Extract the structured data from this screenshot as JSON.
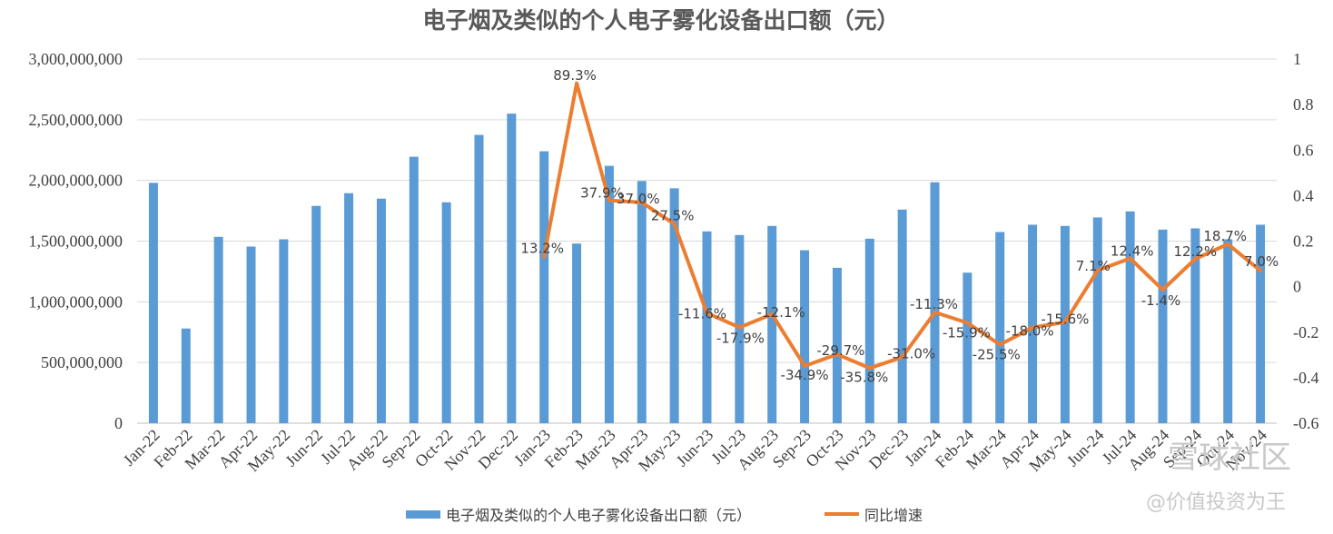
{
  "chart_data": {
    "type": "bar+line",
    "title": "电子烟及类似的个人电子雾化设备出口额（元）",
    "categories": [
      "Jan-22",
      "Feb-22",
      "Mar-22",
      "Apr-22",
      "May-22",
      "Jun-22",
      "Jul-22",
      "Aug-22",
      "Sep-22",
      "Oct-22",
      "Nov-22",
      "Dec-22",
      "Jan-23",
      "Feb-23",
      "Mar-23",
      "Apr-23",
      "May-23",
      "Jun-23",
      "Jul-23",
      "Aug-23",
      "Sep-23",
      "Oct-23",
      "Nov-23",
      "Dec-23",
      "Jan-24",
      "Feb-24",
      "Mar-24",
      "Apr-24",
      "May-24",
      "Jun-24",
      "Jul-24",
      "Aug-24",
      "Sep-24",
      "Oct-24",
      "Nov-24"
    ],
    "series": [
      {
        "name": "电子烟及类似的个人电子雾化设备出口额（元）",
        "type": "bar",
        "axis": "left",
        "color": "#5b9bd5",
        "values": [
          1980000000,
          780000000,
          1535000000,
          1455000000,
          1515000000,
          1790000000,
          1895000000,
          1850000000,
          2195000000,
          1820000000,
          2375000000,
          2550000000,
          2240000000,
          1480000000,
          2120000000,
          1995000000,
          1935000000,
          1580000000,
          1550000000,
          1625000000,
          1425000000,
          1280000000,
          1520000000,
          1760000000,
          1985000000,
          1240000000,
          1575000000,
          1635000000,
          1625000000,
          1695000000,
          1745000000,
          1595000000,
          1605000000,
          1515000000,
          1635000000
        ]
      },
      {
        "name": "同比增速",
        "type": "line",
        "axis": "right",
        "color": "#ed7d31",
        "values": [
          null,
          null,
          null,
          null,
          null,
          null,
          null,
          null,
          null,
          null,
          null,
          null,
          0.132,
          0.893,
          0.379,
          0.37,
          0.275,
          -0.116,
          -0.179,
          -0.121,
          -0.349,
          -0.297,
          -0.358,
          -0.31,
          -0.113,
          -0.159,
          -0.255,
          -0.18,
          -0.156,
          0.071,
          0.124,
          -0.014,
          0.122,
          0.187,
          0.07
        ],
        "labels": [
          "",
          "",
          "",
          "",
          "",
          "",
          "",
          "",
          "",
          "",
          "",
          "",
          "13.2%",
          "89.3%",
          "37.9%",
          "37.0%",
          "27.5%",
          "-11.6%",
          "-17.9%",
          "-12.1%",
          "-34.9%",
          "-29.7%",
          "-35.8%",
          "-31.0%",
          "-11.3%",
          "-15.9%",
          "-25.5%",
          "-18.0%",
          "-15.6%",
          "7.1%",
          "12.4%",
          "-1.4%",
          "12.2%",
          "18.7%",
          "7.0%"
        ]
      }
    ],
    "y_left": {
      "lim": [
        0,
        3000000000
      ],
      "ticks": [
        0,
        500000000,
        1000000000,
        1500000000,
        2000000000,
        2500000000,
        3000000000
      ],
      "tick_labels": [
        "0",
        "500,000,000",
        "1,000,000,000",
        "1,500,000,000",
        "2,000,000,000",
        "2,500,000,000",
        "3,000,000,000"
      ]
    },
    "y_right": {
      "lim": [
        -0.6,
        1
      ],
      "ticks": [
        -0.6,
        -0.4,
        -0.2,
        0,
        0.2,
        0.4,
        0.6,
        0.8,
        1
      ],
      "tick_labels": [
        "-0.6",
        "-0.4",
        "-0.2",
        "0",
        "0.2",
        "0.4",
        "0.6",
        "0.8",
        "1"
      ]
    },
    "grid": true,
    "legend": {
      "position": "bottom",
      "entries": [
        "电子烟及类似的个人电子雾化设备出口额（元）",
        "同比增速"
      ]
    }
  },
  "watermark": {
    "line1": "雪球社区",
    "line2": "@价值投资为王"
  }
}
